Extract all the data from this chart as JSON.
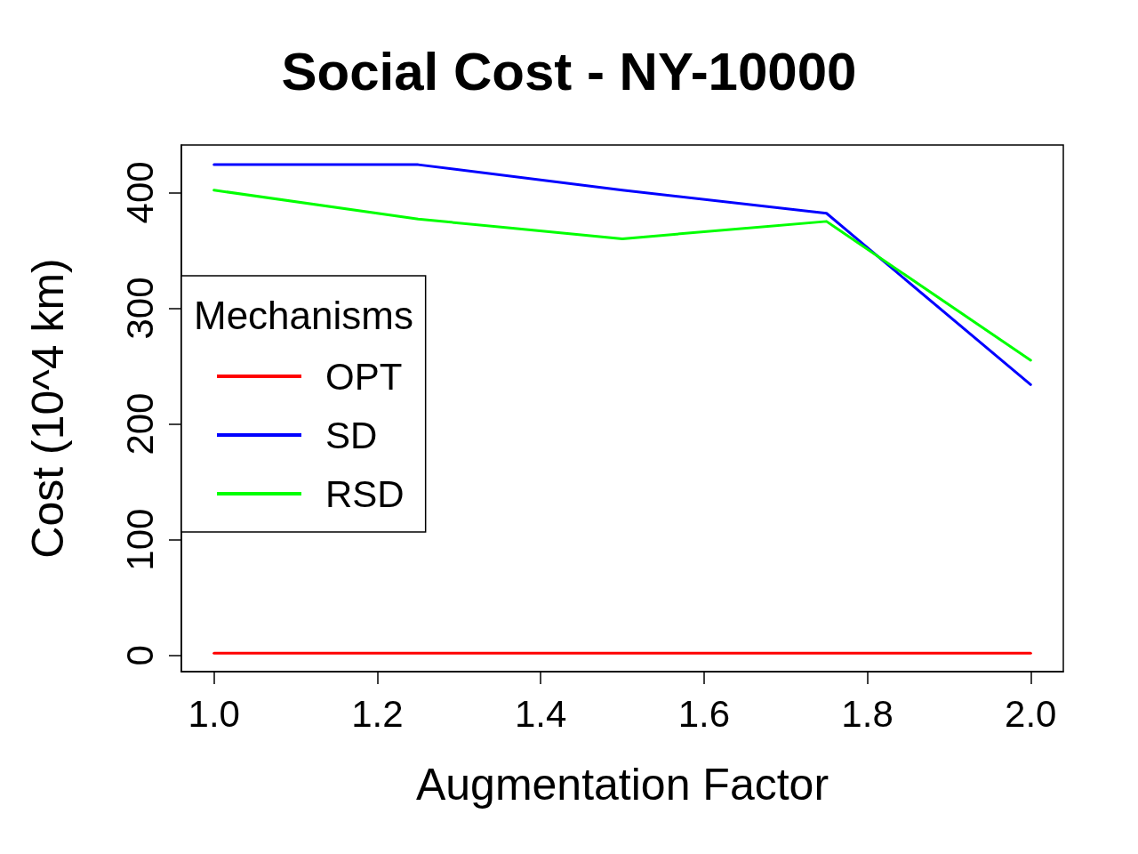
{
  "chart_data": {
    "type": "line",
    "title": "Social Cost - NY-10000",
    "xlabel": "Augmentation Factor",
    "ylabel": "Cost (10^4 km)",
    "legend_title": "Mechanisms",
    "legend": "left",
    "grid": false,
    "marker": "none",
    "line_style": "solid",
    "x": [
      1.0,
      1.25,
      1.5,
      1.75,
      2.0
    ],
    "series": [
      {
        "name": "OPT",
        "color": "#ff0000",
        "values": [
          2,
          2,
          2,
          2,
          2
        ]
      },
      {
        "name": "SD",
        "color": "#0000ff",
        "values": [
          424,
          424,
          402,
          382,
          234
        ]
      },
      {
        "name": "RSD",
        "color": "#00ff00",
        "values": [
          402,
          377,
          360,
          375,
          255
        ]
      }
    ],
    "xlim": [
      0.96,
      2.04
    ],
    "xticks": [
      {
        "value": 1,
        "label": "1.0"
      },
      1.2,
      1.4,
      1.6,
      1.8,
      {
        "value": 2,
        "label": "2.0"
      }
    ],
    "ylim": [
      -14,
      441
    ],
    "yticks": [
      0,
      100,
      200,
      300,
      400
    ]
  }
}
